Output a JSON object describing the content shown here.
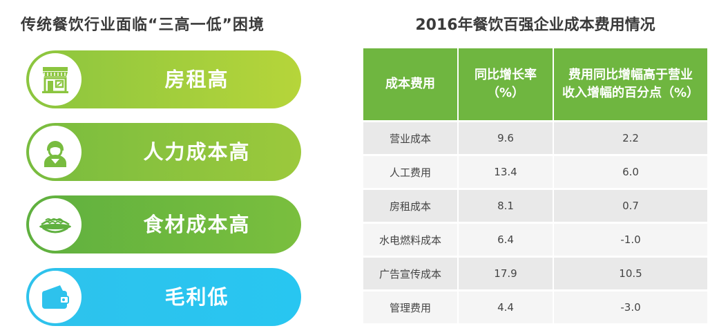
{
  "left": {
    "title": "传统餐饮行业面临“三高一低”困境",
    "items": [
      {
        "label": "房租高",
        "icon": "storefront-icon"
      },
      {
        "label": "人力成本高",
        "icon": "person-icon"
      },
      {
        "label": "食材成本高",
        "icon": "food-plate-icon"
      },
      {
        "label": "毛利低",
        "icon": "wallet-icon"
      }
    ]
  },
  "right": {
    "title": "2016年餐饮百强企业成本费用情况",
    "table": {
      "headers": [
        [
          "成本费用"
        ],
        [
          "同比增长率",
          "（%）"
        ],
        [
          "费用同比增幅高于营业",
          "收入增幅的百分点（%）"
        ]
      ],
      "rows": [
        [
          "营业成本",
          "9.6",
          "2.2"
        ],
        [
          "人工费用",
          "13.4",
          "6.0"
        ],
        [
          "房租成本",
          "8.1",
          "0.7"
        ],
        [
          "水电燃料成本",
          "6.4",
          "-1.0"
        ],
        [
          "广告宣传成本",
          "17.9",
          "10.5"
        ],
        [
          "管理费用",
          "4.4",
          "-3.0"
        ]
      ]
    }
  },
  "colors": {
    "pill_1": "#b6d53a",
    "pill_2": "#9cc93c",
    "pill_3": "#7abf3e",
    "pill_4": "#28c6f1",
    "table_header": "#6fb640"
  }
}
